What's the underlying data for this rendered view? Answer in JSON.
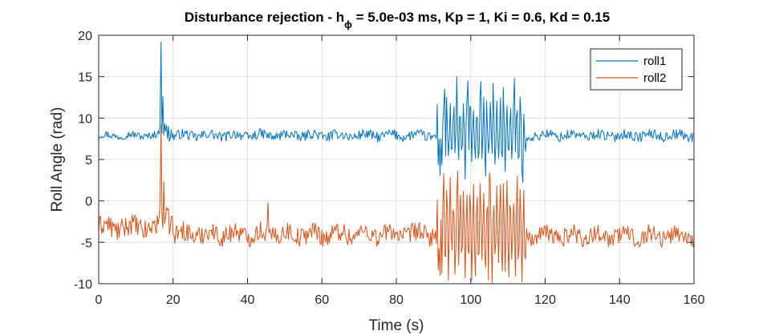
{
  "chart_data": {
    "type": "line",
    "title": {
      "prefix": "Disturbance rejection - h",
      "subscript": "ϕ",
      "suffix": " = 5.0e-03 ms, Kp = 1, Ki = 0.6, Kd = 0.15"
    },
    "xlabel": "Time (s)",
    "ylabel": "Roll Angle (rad)",
    "xlim": [
      0,
      160
    ],
    "ylim": [
      -10,
      20
    ],
    "xticks": [
      0,
      20,
      40,
      60,
      80,
      100,
      120,
      140,
      160
    ],
    "yticks": [
      -10,
      -5,
      0,
      5,
      10,
      15,
      20
    ],
    "grid": true,
    "legend_position": "top-right",
    "series": [
      {
        "name": "roll1",
        "color": "#0072bd",
        "segments": [
          {
            "x_start": 0,
            "x_end": 16.2,
            "base": 7.9,
            "amp": 0.45
          },
          {
            "x_start": 16.2,
            "x_end": 20,
            "base": 8.6,
            "amp": 1.2
          },
          {
            "x_start": 20,
            "x_end": 91,
            "base": 7.9,
            "amp": 0.6
          },
          {
            "x_start": 91,
            "x_end": 115,
            "base": 8.2,
            "amp": 3.6
          },
          {
            "x_start": 115,
            "x_end": 160,
            "base": 7.9,
            "amp": 0.6
          }
        ],
        "peaks": [
          {
            "x": 16.7,
            "y": 19.2
          },
          {
            "x": 17.3,
            "y": 12.6
          },
          {
            "x": 93.0,
            "y": 13.5
          },
          {
            "x": 96.2,
            "y": 15.0
          },
          {
            "x": 99.3,
            "y": 14.5
          },
          {
            "x": 102.7,
            "y": 14.4
          },
          {
            "x": 106.1,
            "y": 14.2
          },
          {
            "x": 108.8,
            "y": 13.7
          },
          {
            "x": 111.7,
            "y": 14.8
          },
          {
            "x": 91.8,
            "y": 3.1
          },
          {
            "x": 98.4,
            "y": 2.6
          },
          {
            "x": 104.0,
            "y": 3.0
          },
          {
            "x": 113.9,
            "y": 2.2
          }
        ]
      },
      {
        "name": "roll2",
        "color": "#d95319",
        "segments": [
          {
            "x_start": 0,
            "x_end": 16.2,
            "base": -3.2,
            "amp": 1.3
          },
          {
            "x_start": 16.2,
            "x_end": 20,
            "base": -2.0,
            "amp": 1.6
          },
          {
            "x_start": 20,
            "x_end": 91,
            "base": -4.0,
            "amp": 1.2
          },
          {
            "x_start": 91,
            "x_end": 115,
            "base": -3.5,
            "amp": 4.8
          },
          {
            "x_start": 115,
            "x_end": 160,
            "base": -4.2,
            "amp": 1.1
          }
        ],
        "peaks": [
          {
            "x": 16.7,
            "y": 9.2
          },
          {
            "x": 17.4,
            "y": 2.3
          },
          {
            "x": 45.6,
            "y": -0.2
          },
          {
            "x": 92.8,
            "y": 3.3
          },
          {
            "x": 96.5,
            "y": 3.6
          },
          {
            "x": 104.9,
            "y": 3.4
          },
          {
            "x": 112.6,
            "y": 3.0
          },
          {
            "x": 91.8,
            "y": -9.0
          },
          {
            "x": 98.5,
            "y": -9.3
          },
          {
            "x": 105.7,
            "y": -9.9
          },
          {
            "x": 113.8,
            "y": -9.8
          }
        ]
      }
    ]
  }
}
